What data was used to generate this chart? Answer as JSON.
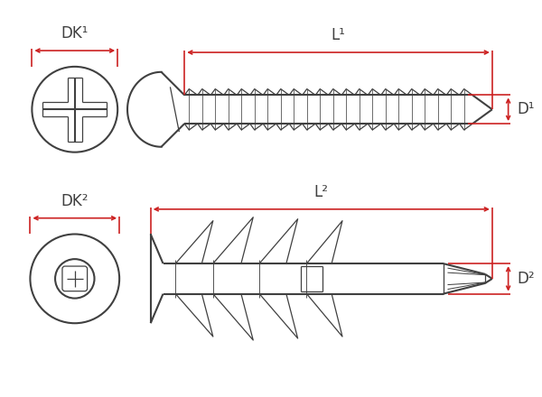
{
  "bg_color": "#ffffff",
  "line_color": "#404040",
  "dim_color": "#cc2222",
  "lw_main": 1.5,
  "lw_thin": 0.9,
  "lw_dim": 1.2,
  "font_size": 12,
  "labels": {
    "dk1": "DK¹",
    "l1": "L¹",
    "d1": "D¹",
    "dk2": "DK²",
    "l2": "L²",
    "d2": "D²"
  }
}
